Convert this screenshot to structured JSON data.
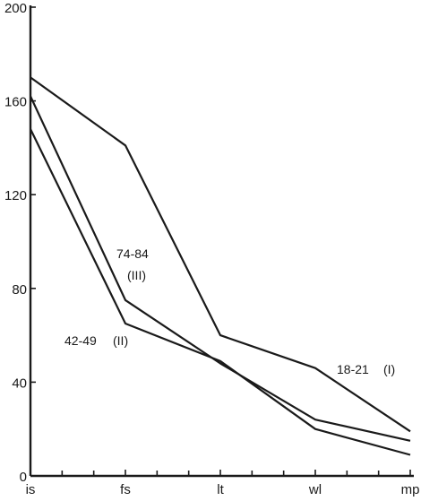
{
  "chart_data": {
    "type": "line",
    "title": "",
    "xlabel": "",
    "ylabel": "",
    "categories": [
      "is",
      "fs",
      "lt",
      "wl",
      "mp"
    ],
    "ylim": [
      0,
      200
    ],
    "y_ticks": [
      "0",
      "40",
      "80",
      "120",
      "160",
      "200"
    ],
    "grid": false,
    "series": [
      {
        "name": "18-21",
        "group": "(I)",
        "values": [
          170,
          141,
          60,
          46,
          19
        ]
      },
      {
        "name": "74-84",
        "group": "(III)",
        "values": [
          162,
          75,
          48,
          24,
          15
        ]
      },
      {
        "name": "42-49",
        "group": "(II)",
        "values": [
          148,
          65,
          49,
          20,
          9
        ]
      }
    ]
  }
}
